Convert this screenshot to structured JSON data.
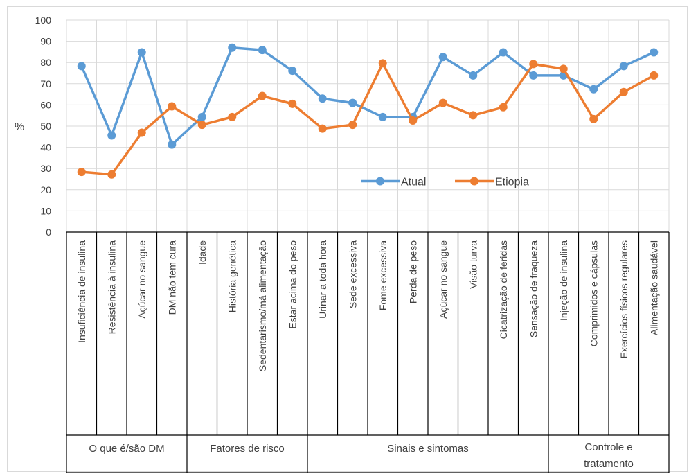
{
  "chart_data": {
    "type": "line",
    "title": "",
    "xlabel": "",
    "ylabel": "%",
    "ylim": [
      0,
      100
    ],
    "yticks": [
      0,
      10,
      20,
      30,
      40,
      50,
      60,
      70,
      80,
      90,
      100
    ],
    "grid": true,
    "legend_position": "inside-right",
    "categories": [
      "Insuficiência de insulina",
      "Resistência à insulina",
      "Açúcar no sangue",
      "DM não tem cura",
      "Idade",
      "História genética",
      "Sedentarismo/má alimentação",
      "Estar acima do peso",
      "Urinar a toda hora",
      "Sede excessiva",
      "Fome excessiva",
      "Perda de peso",
      "Açúcar no sangue",
      "Visão turva",
      "Cicatrização de feridas",
      "Sensação de fraqueza",
      "Injeção de insulina",
      "Comprimidos e cápsulas",
      "Exercícios físicos regulares",
      "Alimentação saudável"
    ],
    "groups": [
      {
        "label": "O que é/são DM",
        "count": 4
      },
      {
        "label": "Fatores de risco",
        "count": 4
      },
      {
        "label": "Sinais e sintomas",
        "count": 8
      },
      {
        "label": "Controle e tratamento",
        "count": 4
      }
    ],
    "series": [
      {
        "name": "Atual",
        "color": "#5b9bd5",
        "values": [
          78.3,
          45.6,
          84.8,
          41.3,
          54.3,
          87.0,
          85.9,
          76.1,
          63.0,
          60.9,
          54.3,
          54.3,
          82.6,
          73.9,
          84.8,
          73.9,
          73.9,
          67.4,
          78.3,
          84.8
        ]
      },
      {
        "name": "Etiopia",
        "color": "#ed7d31",
        "values": [
          28.4,
          27.2,
          46.9,
          59.3,
          50.6,
          54.3,
          64.2,
          60.5,
          48.8,
          50.6,
          79.6,
          52.6,
          60.9,
          55.1,
          58.9,
          79.3,
          77.0,
          53.3,
          66.1,
          73.9
        ]
      }
    ]
  }
}
